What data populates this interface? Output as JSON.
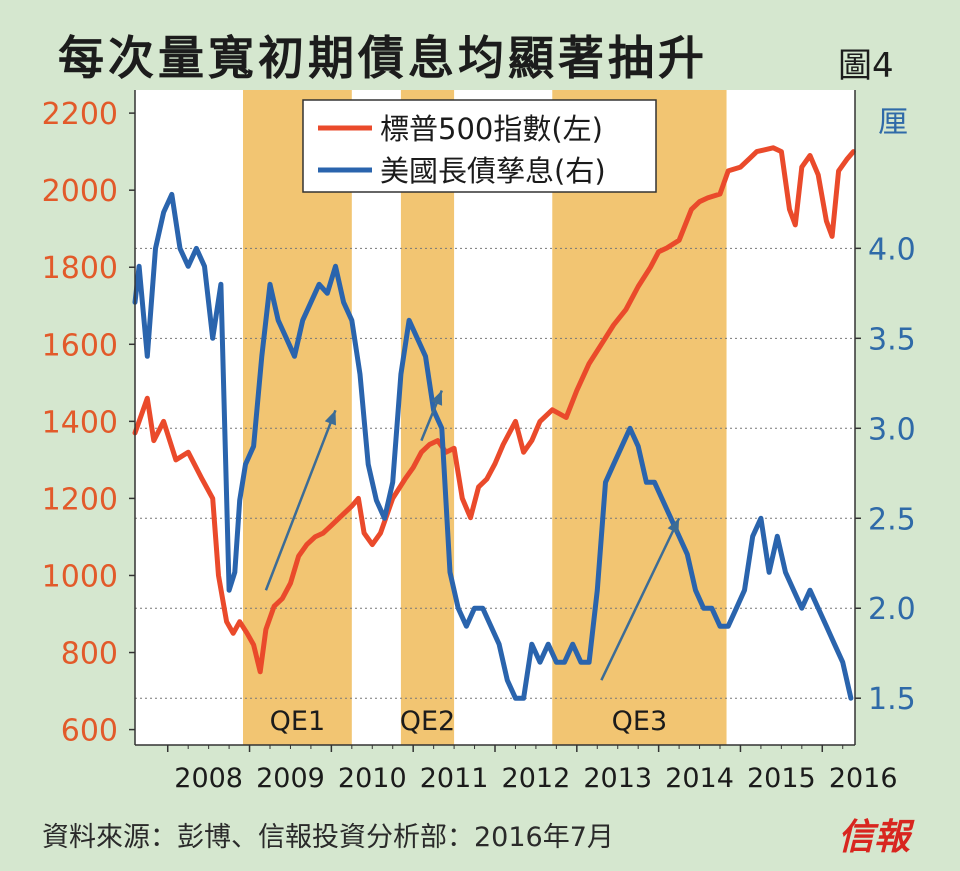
{
  "title": "每次量寬初期債息均顯著抽升",
  "figure_label": "圖4",
  "source": "資料來源：彭博、信報投資分析部：2016年7月",
  "logo_text": "信報",
  "colors": {
    "sp500": "#ea4a2b",
    "treasury": "#2a64ad",
    "qe_band": "#f2c572",
    "plot_bg": "#ffffff",
    "arrow": "#3c6c96",
    "left_axis_text": "#e25a2a",
    "right_axis_text": "#2f6aa8"
  },
  "chart_data": {
    "type": "line",
    "title": "每次量寬初期債息均顯著抽升",
    "x_ticks": [
      "2008",
      "2009",
      "2010",
      "2011",
      "2012",
      "2013",
      "2014",
      "2015",
      "2016"
    ],
    "xlim": [
      2007.6,
      2016.4
    ],
    "y_left": {
      "ticks": [
        600,
        800,
        1000,
        1200,
        1400,
        1600,
        1800,
        2000,
        2200
      ],
      "ylim": [
        560,
        2260
      ]
    },
    "y_right": {
      "unit_label": "厘",
      "ticks": [
        "1.5",
        "2.0",
        "2.5",
        "3.0",
        "3.5",
        "4.0"
      ],
      "ylim": [
        1.24,
        4.88
      ]
    },
    "legend_position": "top-center",
    "series": [
      {
        "name": "標普500指數(左)",
        "axis": "left",
        "x": [
          2007.6,
          2007.75,
          2007.83,
          2007.95,
          2008.1,
          2008.25,
          2008.42,
          2008.55,
          2008.62,
          2008.72,
          2008.8,
          2008.88,
          2008.97,
          2009.05,
          2009.13,
          2009.2,
          2009.3,
          2009.4,
          2009.5,
          2009.6,
          2009.7,
          2009.8,
          2009.9,
          2010.0,
          2010.1,
          2010.25,
          2010.33,
          2010.4,
          2010.5,
          2010.6,
          2010.75,
          2010.9,
          2011.0,
          2011.1,
          2011.2,
          2011.3,
          2011.4,
          2011.5,
          2011.6,
          2011.7,
          2011.8,
          2011.9,
          2012.0,
          2012.1,
          2012.25,
          2012.35,
          2012.45,
          2012.55,
          2012.7,
          2012.87,
          2013.0,
          2013.15,
          2013.3,
          2013.45,
          2013.6,
          2013.75,
          2013.9,
          2014.0,
          2014.1,
          2014.25,
          2014.4,
          2014.5,
          2014.6,
          2014.75,
          2014.85,
          2015.0,
          2015.1,
          2015.2,
          2015.4,
          2015.5,
          2015.6,
          2015.67,
          2015.75,
          2015.85,
          2015.95,
          2016.05,
          2016.12,
          2016.2,
          2016.3,
          2016.38
        ],
        "y": [
          1370,
          1460,
          1350,
          1400,
          1300,
          1320,
          1250,
          1200,
          1000,
          880,
          850,
          880,
          850,
          820,
          750,
          860,
          920,
          940,
          980,
          1050,
          1080,
          1100,
          1110,
          1130,
          1150,
          1180,
          1200,
          1110,
          1080,
          1110,
          1200,
          1250,
          1280,
          1320,
          1340,
          1350,
          1320,
          1330,
          1200,
          1150,
          1230,
          1250,
          1290,
          1340,
          1400,
          1320,
          1350,
          1400,
          1430,
          1410,
          1480,
          1550,
          1600,
          1650,
          1690,
          1750,
          1800,
          1840,
          1850,
          1870,
          1950,
          1970,
          1980,
          1990,
          2050,
          2060,
          2080,
          2100,
          2110,
          2100,
          1950,
          1910,
          2060,
          2090,
          2040,
          1920,
          1880,
          2050,
          2080,
          2100
        ]
      },
      {
        "name": "美國長債孳息(右)",
        "axis": "right",
        "x": [
          2007.6,
          2007.65,
          2007.75,
          2007.85,
          2007.95,
          2008.05,
          2008.15,
          2008.25,
          2008.35,
          2008.45,
          2008.55,
          2008.65,
          2008.75,
          2008.82,
          2008.88,
          2008.95,
          2009.05,
          2009.15,
          2009.25,
          2009.35,
          2009.45,
          2009.55,
          2009.65,
          2009.75,
          2009.85,
          2009.95,
          2010.05,
          2010.15,
          2010.25,
          2010.35,
          2010.45,
          2010.55,
          2010.65,
          2010.75,
          2010.85,
          2010.95,
          2011.05,
          2011.15,
          2011.25,
          2011.35,
          2011.45,
          2011.55,
          2011.65,
          2011.75,
          2011.85,
          2011.95,
          2012.05,
          2012.15,
          2012.25,
          2012.35,
          2012.45,
          2012.55,
          2012.65,
          2012.75,
          2012.85,
          2012.95,
          2013.05,
          2013.15,
          2013.25,
          2013.35,
          2013.45,
          2013.55,
          2013.65,
          2013.75,
          2013.85,
          2013.95,
          2014.05,
          2014.15,
          2014.25,
          2014.35,
          2014.45,
          2014.55,
          2014.65,
          2014.75,
          2014.85,
          2014.95,
          2015.05,
          2015.15,
          2015.25,
          2015.35,
          2015.45,
          2015.55,
          2015.65,
          2015.75,
          2015.85,
          2015.95,
          2016.05,
          2016.15,
          2016.25,
          2016.35
        ],
        "y": [
          3.7,
          3.9,
          3.4,
          4.0,
          4.2,
          4.3,
          4.0,
          3.9,
          4.0,
          3.9,
          3.5,
          3.8,
          2.1,
          2.2,
          2.6,
          2.8,
          2.9,
          3.4,
          3.8,
          3.6,
          3.5,
          3.4,
          3.6,
          3.7,
          3.8,
          3.75,
          3.9,
          3.7,
          3.6,
          3.3,
          2.8,
          2.6,
          2.5,
          2.7,
          3.3,
          3.6,
          3.5,
          3.4,
          3.1,
          3.0,
          2.2,
          2.0,
          1.9,
          2.0,
          2.0,
          1.9,
          1.8,
          1.6,
          1.5,
          1.5,
          1.8,
          1.7,
          1.8,
          1.7,
          1.7,
          1.8,
          1.7,
          1.7,
          2.1,
          2.7,
          2.8,
          2.9,
          3.0,
          2.9,
          2.7,
          2.7,
          2.6,
          2.5,
          2.4,
          2.3,
          2.1,
          2.0,
          2.0,
          1.9,
          1.9,
          2.0,
          2.1,
          2.4,
          2.5,
          2.2,
          2.4,
          2.2,
          2.1,
          2.0,
          2.1,
          2.0,
          1.9,
          1.8,
          1.7,
          1.5
        ]
      }
    ],
    "shaded_regions": [
      {
        "label": "QE1",
        "start": 2008.92,
        "end": 2010.25
      },
      {
        "label": "QE2",
        "start": 2010.85,
        "end": 2011.5
      },
      {
        "label": "QE3",
        "start": 2012.7,
        "end": 2014.83
      }
    ],
    "annotations": [
      {
        "target": "QE1",
        "from": [
          2009.2,
          2.1
        ],
        "to": [
          2010.05,
          3.1
        ]
      },
      {
        "target": "QE2",
        "from": [
          2011.1,
          1350
        ],
        "to": [
          2011.35,
          1480
        ]
      },
      {
        "target": "QE3",
        "from": [
          2013.3,
          1.6
        ],
        "to": [
          2014.25,
          2.5
        ]
      }
    ]
  }
}
